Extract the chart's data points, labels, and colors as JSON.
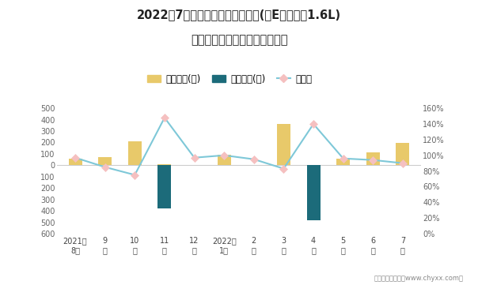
{
  "title_line1": "2022年7月福瑞迪旗下最畅销轿车(新E代福瑞迪1.6L)",
  "title_line2": "近一年库存情况及产销率统计图",
  "x_labels": [
    "2021年\n8月",
    "9\n月",
    "10\n月",
    "11\n月",
    "12\n月",
    "2022年\n1月",
    "2\n月",
    "3\n月",
    "4\n月",
    "5\n月",
    "6\n月",
    "7\n月"
  ],
  "jiiya_values": [
    60,
    70,
    210,
    10,
    0,
    90,
    0,
    360,
    0,
    60,
    110,
    195
  ],
  "qingcang_values": [
    0,
    0,
    0,
    -380,
    0,
    0,
    0,
    0,
    -480,
    0,
    0,
    0
  ],
  "chanxiao_values": [
    0.97,
    0.85,
    0.75,
    1.48,
    0.97,
    1.0,
    0.95,
    0.83,
    1.4,
    0.96,
    0.94,
    0.9
  ],
  "bar_width": 0.45,
  "jiiya_color": "#E8C96A",
  "qingcang_color": "#1C6B7A",
  "chanxiao_color": "#7EC8D8",
  "chanxiao_marker_facecolor": "#F5C0C0",
  "chanxiao_marker_edgecolor": "#F5C0C0",
  "background_color": "#FFFFFF",
  "footer": "制图：智研咨询（www.chyxx.com）",
  "legend_labels": [
    "积压库存(辆)",
    "清仓库存(辆)",
    "产销率"
  ],
  "left_ylim": [
    -600,
    500
  ],
  "right_ylim": [
    0.0,
    1.6
  ]
}
